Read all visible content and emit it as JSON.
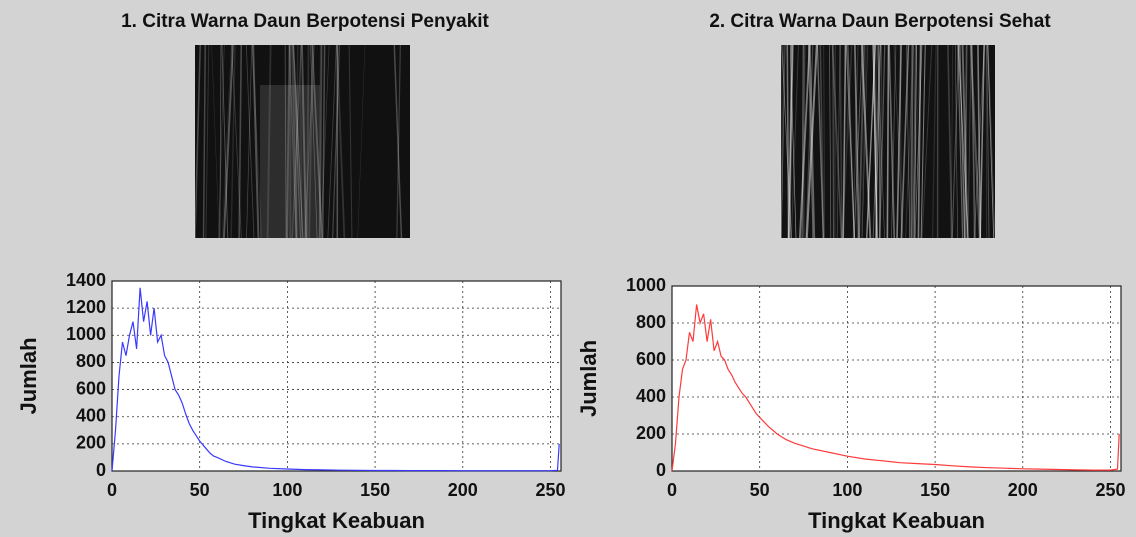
{
  "chart_data": [
    {
      "type": "line",
      "title": "1. Citra Warna Daun Berpotensi Penyakit",
      "xlabel": "Tingkat Keabuan",
      "ylabel": "Jumlah",
      "color": "#3a3aff",
      "grid": true,
      "x": [
        0,
        2,
        4,
        6,
        8,
        10,
        12,
        14,
        16,
        18,
        20,
        22,
        24,
        26,
        28,
        30,
        32,
        34,
        36,
        38,
        40,
        42,
        44,
        46,
        48,
        50,
        52,
        54,
        56,
        58,
        60,
        65,
        70,
        75,
        80,
        90,
        100,
        110,
        120,
        130,
        140,
        150,
        160,
        170,
        180,
        190,
        200,
        210,
        220,
        230,
        240,
        250,
        254,
        255
      ],
      "values": [
        0,
        300,
        700,
        950,
        850,
        1000,
        1100,
        900,
        1350,
        1100,
        1250,
        1000,
        1200,
        950,
        1000,
        850,
        800,
        700,
        600,
        560,
        500,
        420,
        350,
        300,
        260,
        220,
        190,
        160,
        130,
        110,
        100,
        70,
        50,
        40,
        30,
        20,
        15,
        10,
        8,
        6,
        5,
        4,
        4,
        3,
        3,
        3,
        2,
        2,
        2,
        2,
        2,
        2,
        5,
        200
      ],
      "xlim": [
        0,
        256
      ],
      "xticks": [
        0,
        50,
        100,
        150,
        200,
        250
      ],
      "ylim": [
        0,
        1400
      ],
      "yticks": [
        0,
        200,
        400,
        600,
        800,
        1000,
        1200,
        1400
      ]
    },
    {
      "type": "line",
      "title": "2. Citra Warna Daun Berpotensi Sehat",
      "xlabel": "Tingkat Keabuan",
      "ylabel": "Jumlah",
      "color": "#ff3a3a",
      "grid": true,
      "x": [
        0,
        2,
        4,
        6,
        8,
        10,
        12,
        14,
        16,
        18,
        20,
        22,
        24,
        26,
        28,
        30,
        32,
        34,
        36,
        38,
        40,
        42,
        44,
        46,
        48,
        50,
        55,
        60,
        65,
        70,
        80,
        90,
        100,
        110,
        120,
        130,
        140,
        150,
        160,
        170,
        180,
        190,
        200,
        210,
        220,
        230,
        240,
        250,
        254,
        255
      ],
      "values": [
        0,
        150,
        400,
        550,
        600,
        750,
        700,
        900,
        800,
        850,
        700,
        820,
        650,
        700,
        620,
        600,
        550,
        520,
        480,
        450,
        420,
        400,
        370,
        340,
        310,
        290,
        240,
        200,
        170,
        150,
        120,
        100,
        80,
        65,
        55,
        45,
        40,
        35,
        28,
        22,
        18,
        15,
        12,
        10,
        8,
        6,
        5,
        5,
        10,
        200
      ],
      "xlim": [
        0,
        256
      ],
      "xticks": [
        0,
        50,
        100,
        150,
        200,
        250
      ],
      "ylim": [
        0,
        1000
      ],
      "yticks": [
        0,
        200,
        400,
        600,
        800,
        1000
      ]
    }
  ]
}
